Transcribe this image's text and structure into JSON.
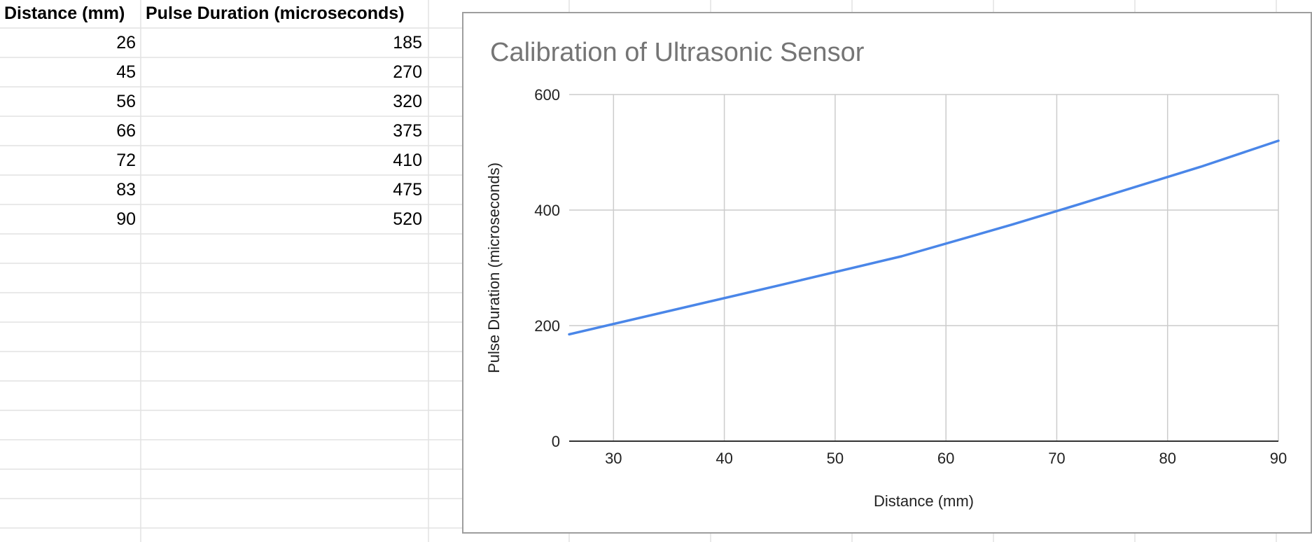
{
  "sheet": {
    "headers": [
      "Distance (mm)",
      "Pulse Duration (microseconds)"
    ],
    "rows": [
      [
        "26",
        "185"
      ],
      [
        "45",
        "270"
      ],
      [
        "56",
        "320"
      ],
      [
        "66",
        "375"
      ],
      [
        "72",
        "410"
      ],
      [
        "83",
        "475"
      ],
      [
        "90",
        "520"
      ]
    ]
  },
  "chart_data": {
    "type": "line",
    "title": "Calibration of Ultrasonic Sensor",
    "xlabel": "Distance (mm)",
    "ylabel": "Pulse Duration (microseconds)",
    "xlim": [
      26,
      90
    ],
    "ylim": [
      0,
      600
    ],
    "x_ticks": [
      30,
      40,
      50,
      60,
      70,
      80,
      90
    ],
    "y_ticks": [
      0,
      200,
      400,
      600
    ],
    "grid": true,
    "legend": "none",
    "series": [
      {
        "x": [
          26,
          45,
          56,
          66,
          72,
          83,
          90
        ],
        "values": [
          185,
          270,
          320,
          375,
          410,
          475,
          520
        ],
        "color": "#4a86e8"
      }
    ]
  },
  "colors": {
    "gridline": "#e2e2e2",
    "chart_grid": "#cccccc",
    "line": "#4a86e8",
    "title": "#757575"
  }
}
